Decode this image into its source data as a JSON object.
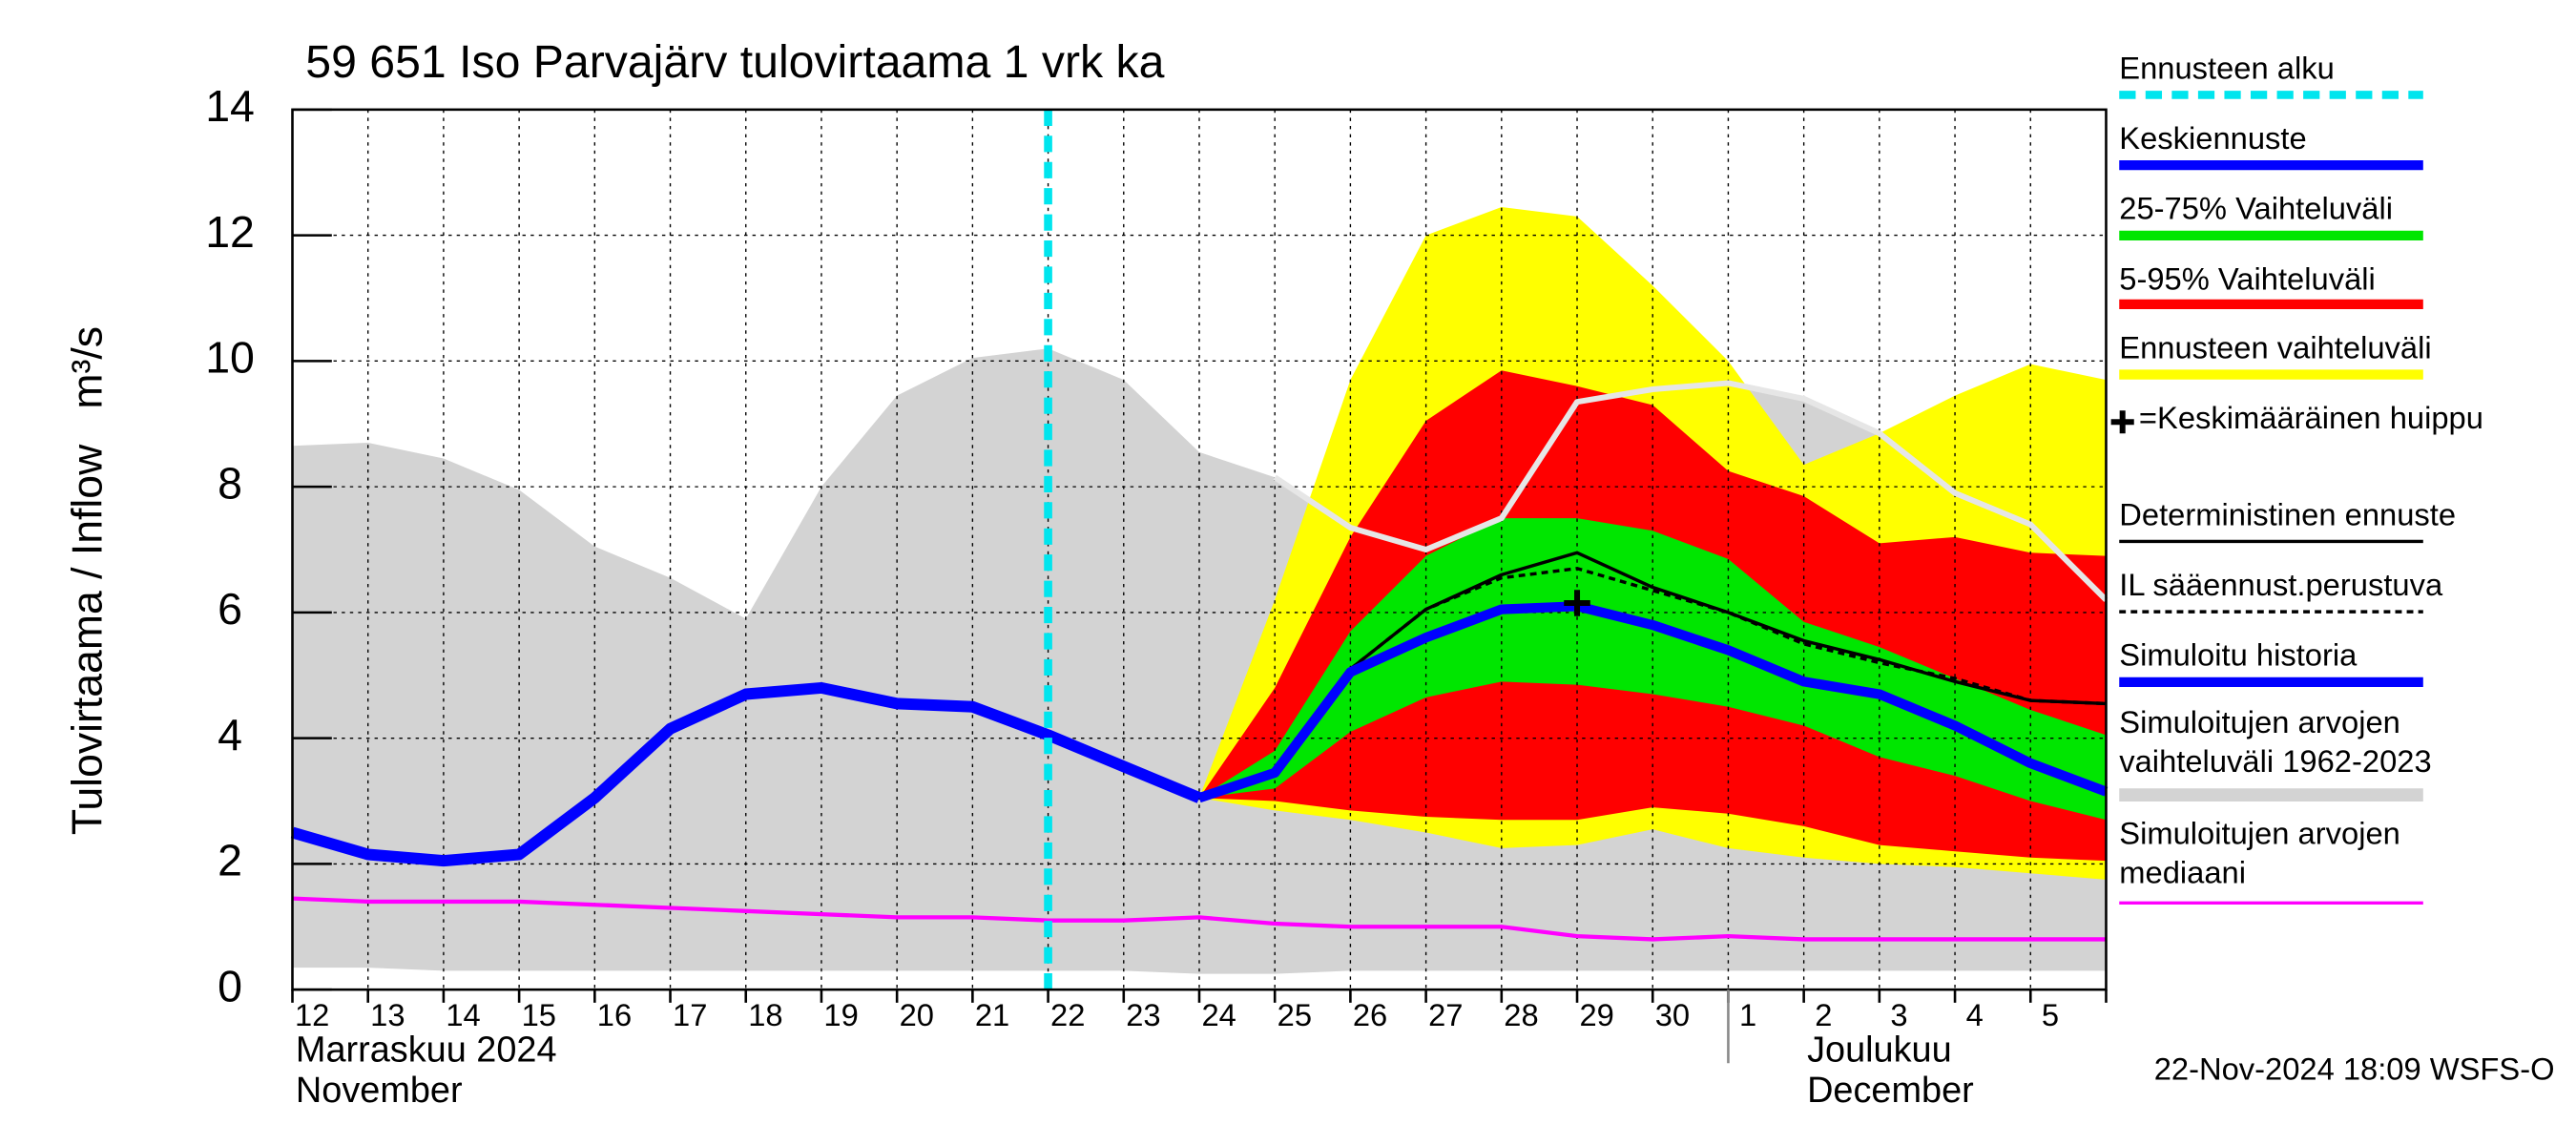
{
  "chart_data": {
    "type": "hydrograph",
    "title": "59 651 Iso Parvajärv tulovirtaama 1 vrk ka",
    "ylabel": "Tulovirtaama / Inflow   m³/s",
    "categories": [
      "12",
      "13",
      "14",
      "15",
      "16",
      "17",
      "18",
      "19",
      "20",
      "21",
      "22",
      "23",
      "24",
      "25",
      "26",
      "27",
      "28",
      "29",
      "30",
      "1",
      "2",
      "3",
      "4",
      "5",
      null
    ],
    "month_labels": [
      "Marraskuu 2024",
      "November",
      "Joulukuu",
      "December"
    ],
    "timestamp": "22-Nov-2024 18:09 WSFS-O",
    "ylim": [
      0,
      14
    ],
    "yticks": [
      0,
      2,
      4,
      6,
      8,
      10,
      12,
      14
    ],
    "grid": true,
    "series": [
      {
        "name": "Ennusteen alku",
        "color": "#00e5ee",
        "x": "22"
      },
      {
        "name": "Keskiennuste",
        "color": "#0000ff",
        "values": [
          null,
          null,
          null,
          null,
          null,
          null,
          null,
          null,
          null,
          null,
          null,
          null,
          3.05,
          3.45,
          5.05,
          5.6,
          6.05,
          6.1,
          5.8,
          5.4,
          4.9,
          4.7,
          4.2,
          3.6,
          3.15
        ]
      },
      {
        "name": "25-75% Vaihteluväli",
        "color": "#00e600",
        "upper": [
          null,
          null,
          null,
          null,
          null,
          null,
          null,
          null,
          null,
          null,
          null,
          null,
          3.05,
          3.8,
          5.7,
          6.9,
          7.5,
          7.5,
          7.3,
          6.85,
          5.85,
          5.45,
          4.95,
          4.45,
          4.05
        ],
        "lower": [
          null,
          null,
          null,
          null,
          null,
          null,
          null,
          null,
          null,
          null,
          null,
          null,
          3.05,
          3.2,
          4.1,
          4.65,
          4.9,
          4.85,
          4.7,
          4.5,
          4.2,
          3.7,
          3.4,
          3.0,
          2.7
        ]
      },
      {
        "name": "5-95% Vaihteluväli",
        "color": "#ff0000",
        "upper": [
          null,
          null,
          null,
          null,
          null,
          null,
          null,
          null,
          null,
          null,
          null,
          null,
          3.05,
          4.8,
          7.2,
          9.05,
          9.85,
          9.6,
          9.3,
          8.25,
          7.85,
          7.1,
          7.2,
          6.95,
          6.9
        ],
        "lower": [
          null,
          null,
          null,
          null,
          null,
          null,
          null,
          null,
          null,
          null,
          null,
          null,
          3.05,
          3.0,
          2.85,
          2.75,
          2.7,
          2.7,
          2.9,
          2.8,
          2.6,
          2.3,
          2.2,
          2.1,
          2.05
        ]
      },
      {
        "name": "Ennusteen vaihteluväli",
        "color": "#ffff00",
        "upper": [
          null,
          null,
          null,
          null,
          null,
          null,
          null,
          null,
          null,
          null,
          null,
          null,
          3.05,
          6.2,
          9.7,
          12.0,
          12.45,
          12.3,
          11.2,
          10.0,
          8.35,
          8.85,
          9.45,
          9.95,
          9.7
        ],
        "lower": [
          null,
          null,
          null,
          null,
          null,
          null,
          null,
          null,
          null,
          null,
          null,
          null,
          3.05,
          2.85,
          2.7,
          2.5,
          2.25,
          2.3,
          2.55,
          2.25,
          2.1,
          2.0,
          1.95,
          1.85,
          1.75
        ]
      },
      {
        "name": "=Keskimääräinen huippu",
        "color": "#000000",
        "values": [
          null,
          null,
          null,
          null,
          null,
          null,
          null,
          null,
          null,
          null,
          null,
          null,
          null,
          null,
          null,
          null,
          null,
          6.15,
          null,
          null,
          null,
          null,
          null,
          null,
          null
        ]
      },
      {
        "name": "Deterministinen ennuste",
        "color": "#000000",
        "values": [
          null,
          null,
          null,
          null,
          null,
          null,
          null,
          null,
          null,
          null,
          null,
          null,
          3.05,
          3.5,
          5.1,
          6.05,
          6.6,
          6.95,
          6.4,
          6.0,
          5.55,
          5.25,
          4.9,
          4.6,
          4.55
        ]
      },
      {
        "name": "IL sääennust.perustuva",
        "color": "#000000",
        "dashed": true,
        "values": [
          null,
          null,
          null,
          null,
          null,
          null,
          null,
          null,
          null,
          null,
          null,
          null,
          3.05,
          3.5,
          5.1,
          6.05,
          6.55,
          6.7,
          6.35,
          6.0,
          5.5,
          5.2,
          4.95,
          4.6,
          4.55
        ]
      },
      {
        "name": "Simuloitu historia",
        "color": "#0000ff",
        "values": [
          2.5,
          2.15,
          2.05,
          2.15,
          3.05,
          4.15,
          4.7,
          4.8,
          4.55,
          4.5,
          4.05,
          3.55,
          3.05,
          null,
          null,
          null,
          null,
          null,
          null,
          null,
          null,
          null,
          null,
          null,
          null
        ]
      },
      {
        "name": "Simuloitujen arvojen vaihteluväli 1962-2023",
        "color": "#d3d3d3",
        "upper": [
          8.65,
          8.7,
          8.45,
          7.95,
          7.05,
          6.55,
          5.9,
          8.0,
          9.45,
          10.05,
          10.2,
          9.7,
          8.55,
          8.15,
          7.35,
          7.0,
          7.5,
          9.35,
          9.55,
          9.65,
          9.4,
          8.85,
          7.9,
          7.4,
          6.2
        ],
        "lower": [
          0.35,
          0.35,
          0.3,
          0.3,
          0.3,
          0.3,
          0.3,
          0.3,
          0.3,
          0.3,
          0.3,
          0.3,
          0.25,
          0.25,
          0.3,
          0.3,
          0.3,
          0.3,
          0.3,
          0.3,
          0.3,
          0.3,
          0.3,
          0.3,
          0.3
        ]
      },
      {
        "name": "Simuloitujen arvojen mediaani",
        "color": "#ff00ff",
        "values": [
          1.45,
          1.4,
          1.4,
          1.4,
          1.35,
          1.3,
          1.25,
          1.2,
          1.15,
          1.15,
          1.1,
          1.1,
          1.15,
          1.05,
          1.0,
          1.0,
          1.0,
          0.85,
          0.8,
          0.85,
          0.8,
          0.8,
          0.8,
          0.8,
          0.8
        ]
      },
      {
        "color": "#e6e6e6",
        "values": [
          null,
          null,
          null,
          null,
          null,
          null,
          null,
          null,
          null,
          null,
          null,
          null,
          null,
          8.15,
          7.35,
          7.0,
          7.5,
          9.35,
          9.55,
          9.65,
          9.4,
          8.85,
          7.9,
          7.4,
          6.2
        ]
      }
    ]
  }
}
